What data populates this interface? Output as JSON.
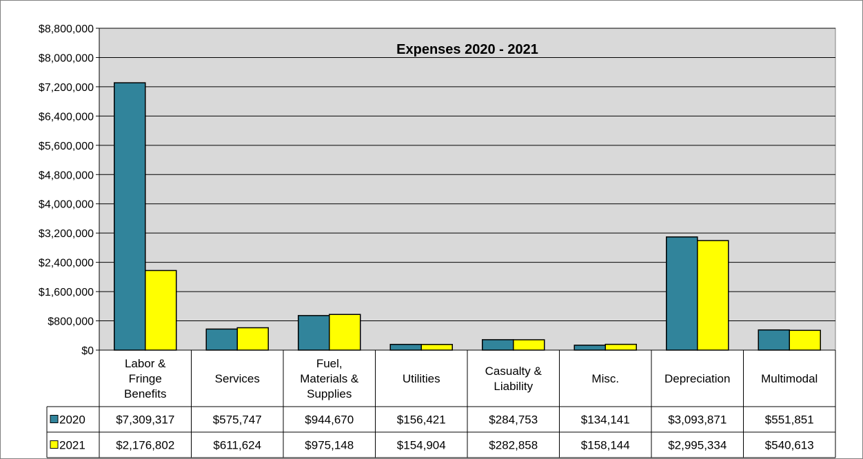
{
  "chart_data": {
    "type": "bar",
    "title": "Expenses 2020 - 2021",
    "xlabel": "",
    "ylabel": "",
    "ylim": [
      0,
      8800000
    ],
    "yticks": [
      0,
      800000,
      1600000,
      2400000,
      3200000,
      4000000,
      4800000,
      5600000,
      6400000,
      7200000,
      8000000,
      8800000
    ],
    "ytick_labels": [
      "$0",
      "$800,000",
      "$1,600,000",
      "$2,400,000",
      "$3,200,000",
      "$4,000,000",
      "$4,800,000",
      "$5,600,000",
      "$6,400,000",
      "$7,200,000",
      "$8,000,000",
      "$8,800,000"
    ],
    "grid": true,
    "legend": "data-table-left",
    "categories": [
      [
        "Labor &",
        "Fringe",
        "Benefits"
      ],
      [
        "Services"
      ],
      [
        "Fuel,",
        "Materials &",
        "Supplies"
      ],
      [
        "Utilities"
      ],
      [
        "Casualty &",
        "Liability"
      ],
      [
        "Misc."
      ],
      [
        "Depreciation"
      ],
      [
        "Multimodal"
      ]
    ],
    "series": [
      {
        "name": "2020",
        "color": "#31849b",
        "values": [
          7309317,
          575747,
          944670,
          156421,
          284753,
          134141,
          3093871,
          551851
        ],
        "labels": [
          "$7,309,317",
          "$575,747",
          "$944,670",
          "$156,421",
          "$284,753",
          "$134,141",
          "$3,093,871",
          "$551,851"
        ]
      },
      {
        "name": "2021",
        "color": "#ffff00",
        "values": [
          2176802,
          611624,
          975148,
          154904,
          282858,
          158144,
          2995334,
          540613
        ],
        "labels": [
          "$2,176,802",
          "$611,624",
          "$975,148",
          "$154,904",
          "$282,858",
          "$158,144",
          "$2,995,334",
          "$540,613"
        ]
      }
    ],
    "plot_background": "#d9d9d9"
  }
}
